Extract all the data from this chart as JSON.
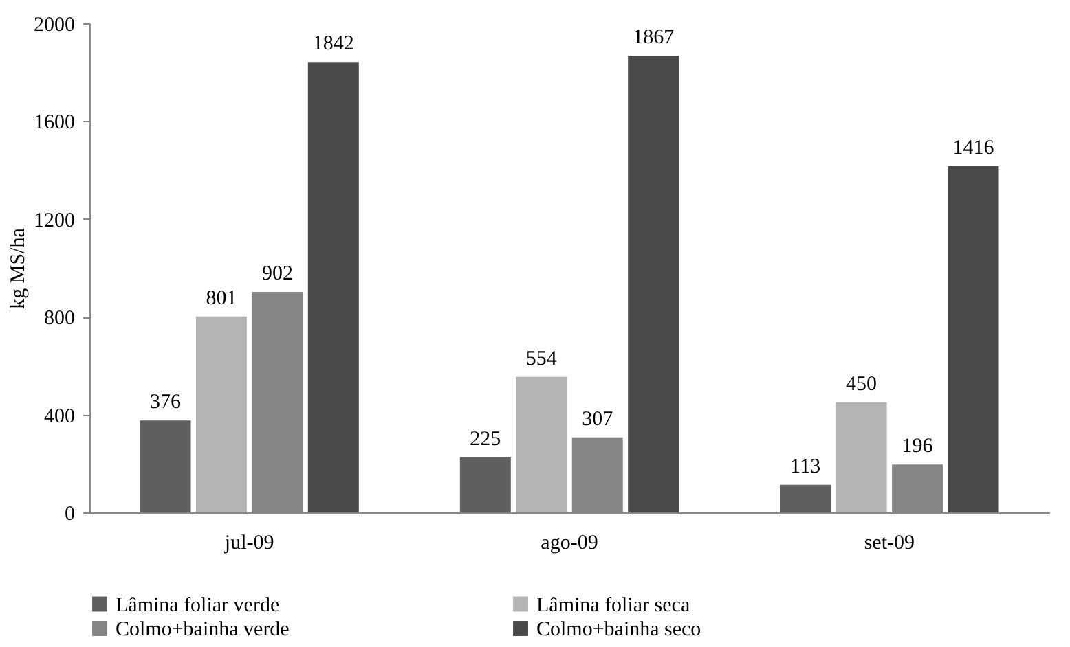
{
  "chart_data": {
    "type": "bar",
    "ylabel": "kg MS/ha",
    "categories": [
      "jul-09",
      "ago-09",
      "set-09"
    ],
    "series": [
      {
        "name": "Lâmina foliar verde",
        "color": "#5f5f5f",
        "values": [
          376,
          225,
          113
        ]
      },
      {
        "name": "Lâmina foliar seca",
        "color": "#b4b4b4",
        "values": [
          801,
          554,
          450
        ]
      },
      {
        "name": "Colmo+bainha verde",
        "color": "#858585",
        "values": [
          902,
          307,
          196
        ]
      },
      {
        "name": "Colmo+bainha seco",
        "color": "#4a4a4a",
        "values": [
          1842,
          1867,
          1416
        ]
      }
    ],
    "ylim": [
      0,
      2000
    ],
    "yticks": [
      0,
      400,
      800,
      1200,
      1600,
      2000
    ],
    "data_labels": true,
    "grid": false,
    "legend": "bottom"
  }
}
